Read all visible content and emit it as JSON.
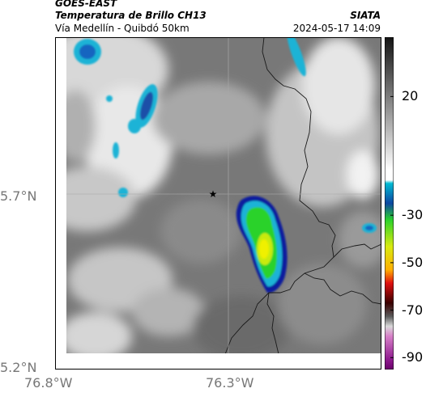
{
  "header": {
    "satellite": "GOES-EAST",
    "product": "Temperatura de Brillo CH13",
    "route": "Vía Medellín - Quibdó 50km",
    "organization": "SIATA",
    "datetime": "2024-05-17 14:09"
  },
  "map": {
    "latitude_labels": [
      "5.7°N",
      "5.2°N"
    ],
    "longitude_labels": [
      "76.8°W",
      "76.3°W"
    ],
    "marker_icon": "star-icon"
  },
  "colorbar": {
    "tick_labels": [
      "20",
      "-30",
      "-50",
      "-70",
      "-90"
    ],
    "tick_values": [
      20,
      -30,
      -50,
      -70,
      -90
    ],
    "range": [
      -95,
      45
    ]
  },
  "colors": {
    "cloud_cyan": "#1ab3d6",
    "cold_green": "#2bd22b",
    "coldest_yellow": "#f0f000",
    "deep_blue": "#0a1f9e",
    "ground_gray": "#6e6e6e"
  }
}
